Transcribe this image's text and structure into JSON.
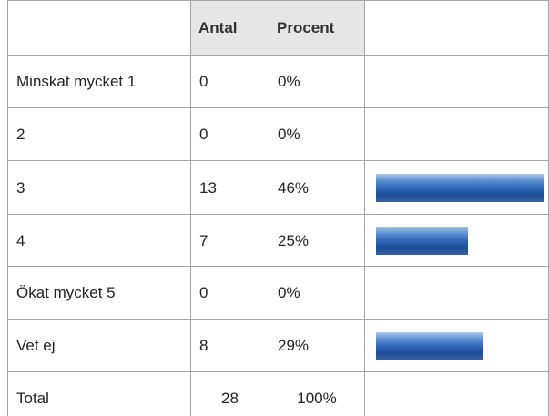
{
  "header": {
    "count": "Antal",
    "percent": "Procent"
  },
  "rows": [
    {
      "label": "Minskat mycket 1",
      "count": 0,
      "percent": 0,
      "percent_label": "0%"
    },
    {
      "label": "2",
      "count": 0,
      "percent": 0,
      "percent_label": "0%"
    },
    {
      "label": "3",
      "count": 13,
      "percent": 46,
      "percent_label": "46%"
    },
    {
      "label": "4",
      "count": 7,
      "percent": 25,
      "percent_label": "25%"
    },
    {
      "label": "Ökat mycket 5",
      "count": 0,
      "percent": 0,
      "percent_label": "0%"
    },
    {
      "label": "Vet ej",
      "count": 8,
      "percent": 29,
      "percent_label": "29%"
    }
  ],
  "total": {
    "label": "Total",
    "count": 28,
    "percent_label": "100%"
  }
}
